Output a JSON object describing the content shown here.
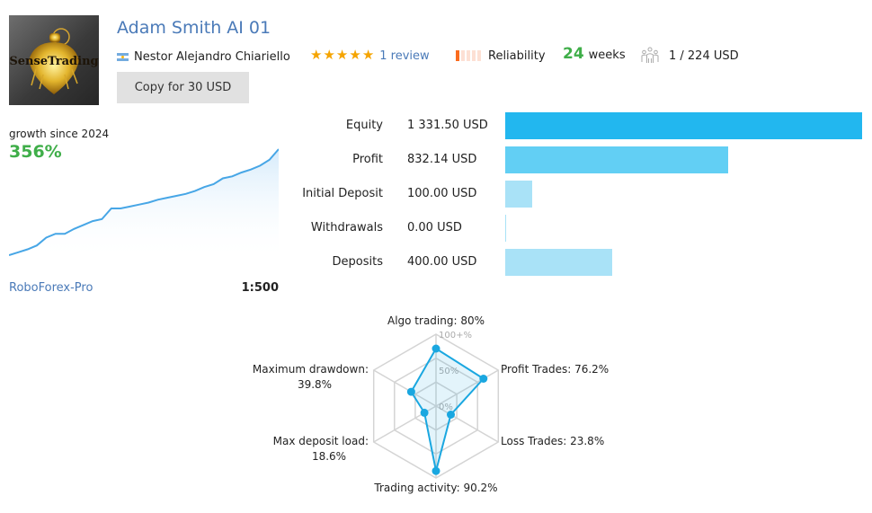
{
  "header": {
    "logo_text": "SenseTrading",
    "title": "Adam Smith AI 01",
    "author": "Nestor Alejandro Chiariello",
    "author_flag": "argentina-flag-icon",
    "copy_button": "Copy for 30 USD",
    "rating_stars": 5,
    "reviews": "1 review",
    "reliability_label": "Reliability",
    "reliability_level": 1,
    "reliability_max": 5,
    "weeks_num": "24",
    "weeks_label": "weeks",
    "subscribers": "1 / 224 USD"
  },
  "growth": {
    "label": "growth since 2024",
    "value": "356%",
    "broker": "RoboForex-Pro",
    "leverage": "1:500",
    "curve": [
      0,
      3,
      6,
      10,
      18,
      22,
      22,
      27,
      31,
      35,
      37,
      48,
      48,
      50,
      52,
      54,
      57,
      59,
      61,
      63,
      66,
      70,
      73,
      79,
      81,
      85,
      88,
      92,
      98,
      109
    ]
  },
  "stats": [
    {
      "label": "Equity",
      "value": "1 331.50 USD",
      "amount": 1331.5,
      "color": "#22b7ef"
    },
    {
      "label": "Profit",
      "value": "832.14 USD",
      "amount": 832.14,
      "color": "#62cff4"
    },
    {
      "label": "Initial Deposit",
      "value": "100.00 USD",
      "amount": 100.0,
      "color": "#a9e2f7"
    },
    {
      "label": "Withdrawals",
      "value": "0.00 USD",
      "amount": 0.0,
      "color": "#a9e2f7"
    },
    {
      "label": "Deposits",
      "value": "400.00 USD",
      "amount": 400.0,
      "color": "#a9e2f7"
    }
  ],
  "radar": {
    "ticks": [
      "100+%",
      "50%",
      "0%"
    ],
    "axes": [
      {
        "label": "Algo trading: 80%",
        "value": 80
      },
      {
        "label": "Profit Trades: 76.2%",
        "value": 76.2
      },
      {
        "label": "Loss Trades: 23.8%",
        "value": 23.8
      },
      {
        "label": "Trading activity: 90.2%",
        "value": 90.2
      },
      {
        "label_line1": "Max deposit load:",
        "label_line2": "18.6%",
        "value": 18.6
      },
      {
        "label_line1": "Maximum drawdown:",
        "label_line2": "39.8%",
        "value": 39.8
      }
    ],
    "color": "#1aa7e0"
  }
}
